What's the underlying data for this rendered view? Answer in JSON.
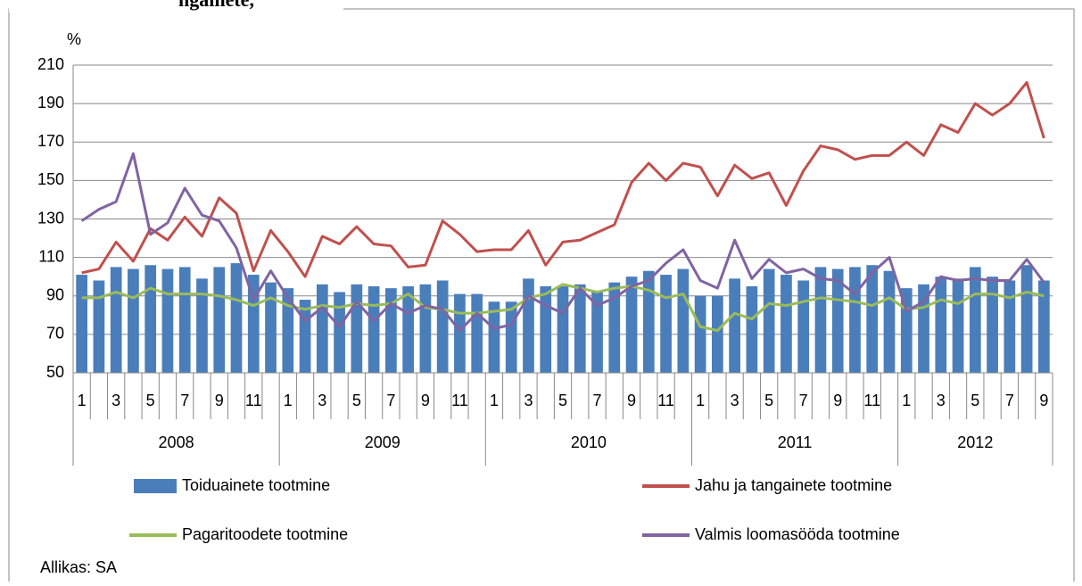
{
  "chart_data": {
    "type": "bar-line",
    "title": "ngainete,",
    "unit_label": "%",
    "source": "Allikas: SA",
    "categories": [
      "1",
      null,
      "3",
      null,
      "5",
      null,
      "7",
      null,
      "9",
      null,
      "11",
      null,
      "1",
      null,
      "3",
      null,
      "5",
      null,
      "7",
      null,
      "9",
      null,
      "11",
      null,
      "1",
      null,
      "3",
      null,
      "5",
      null,
      "7",
      null,
      "9",
      null,
      "11",
      null,
      "1",
      null,
      "3",
      null,
      "5",
      null,
      "7",
      null,
      "9",
      null,
      "11",
      null,
      "1",
      null,
      "3",
      null,
      "5",
      null,
      "7",
      null,
      "9"
    ],
    "years": [
      "2008",
      "2009",
      "2010",
      "2011",
      "2012"
    ],
    "ylim": [
      50,
      210
    ],
    "yticks": [
      50,
      70,
      90,
      110,
      130,
      150,
      170,
      190,
      210
    ],
    "grid": true,
    "series": [
      {
        "name": "Toiduainete tootmine",
        "type": "bar",
        "color": "#4a7ebb",
        "values": [
          101,
          98,
          105,
          104,
          106,
          104,
          105,
          99,
          105,
          107,
          101,
          97,
          94,
          88,
          96,
          92,
          96,
          95,
          94,
          95,
          96,
          98,
          91,
          91,
          87,
          87,
          99,
          95,
          95,
          96,
          92,
          97,
          100,
          103,
          101,
          104,
          90,
          90,
          99,
          95,
          104,
          101,
          98,
          105,
          104,
          105,
          106,
          103,
          94,
          96,
          100,
          99,
          105,
          100,
          98,
          106,
          98
        ]
      },
      {
        "name": "Jahu ja tangainete tootmine",
        "type": "line",
        "color": "#c0504d",
        "values": [
          102,
          104,
          118,
          108,
          125,
          119,
          131,
          121,
          141,
          133,
          103,
          124,
          113,
          100,
          121,
          117,
          126,
          117,
          116,
          105,
          106,
          129,
          122,
          113,
          114,
          114,
          124,
          106,
          118,
          119,
          123,
          127,
          149,
          159,
          150,
          159,
          157,
          142,
          158,
          151,
          154,
          137,
          155,
          168,
          166,
          161,
          163,
          163,
          170,
          163,
          179,
          175,
          190,
          184,
          190,
          201,
          172
        ]
      },
      {
        "name": "Pagaritoodete tootmine",
        "type": "line",
        "color": "#9bbb59",
        "values": [
          89,
          89,
          92,
          89,
          94,
          91,
          91,
          91,
          90,
          88,
          85,
          89,
          85,
          83,
          85,
          84,
          86,
          85,
          86,
          91,
          84,
          83,
          81,
          81,
          82,
          83,
          89,
          91,
          96,
          94,
          92,
          94,
          95,
          93,
          89,
          91,
          74,
          72,
          81,
          78,
          86,
          85,
          87,
          89,
          88,
          87,
          85,
          89,
          83,
          84,
          88,
          86,
          91,
          91,
          89,
          92,
          90
        ]
      },
      {
        "name": "Valmis loomasööda tootmine",
        "type": "line",
        "color": "#8064a2",
        "values": [
          129,
          135,
          139,
          164,
          122,
          128,
          146,
          132,
          129,
          115,
          88,
          103,
          89,
          77,
          84,
          74,
          87,
          77,
          86,
          81,
          85,
          83,
          72,
          81,
          73,
          75,
          90,
          85,
          81,
          94,
          85,
          89,
          95,
          98,
          107,
          114,
          98,
          94,
          119,
          99,
          109,
          102,
          104,
          99,
          98,
          91,
          102,
          110,
          82,
          87,
          100,
          98,
          99,
          98,
          98,
          109,
          97
        ]
      }
    ]
  }
}
